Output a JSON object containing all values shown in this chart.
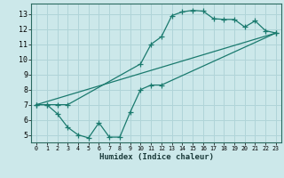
{
  "title": "",
  "xlabel": "Humidex (Indice chaleur)",
  "bg_color": "#cce8ea",
  "grid_color": "#b0d4d8",
  "line_color": "#1a7a6e",
  "xlim": [
    -0.5,
    23.5
  ],
  "ylim": [
    4.5,
    13.7
  ],
  "xticks": [
    0,
    1,
    2,
    3,
    4,
    5,
    6,
    7,
    8,
    9,
    10,
    11,
    12,
    13,
    14,
    15,
    16,
    17,
    18,
    19,
    20,
    21,
    22,
    23
  ],
  "yticks": [
    5,
    6,
    7,
    8,
    9,
    10,
    11,
    12,
    13
  ],
  "line1_x": [
    0,
    1,
    2,
    3,
    10,
    11,
    12,
    13,
    14,
    15,
    16,
    17,
    18,
    19,
    20,
    21,
    22,
    23
  ],
  "line1_y": [
    7.0,
    7.0,
    7.0,
    7.0,
    9.7,
    11.0,
    11.5,
    12.9,
    13.15,
    13.25,
    13.2,
    12.7,
    12.65,
    12.65,
    12.15,
    12.55,
    11.9,
    11.75
  ],
  "line2_x": [
    0,
    1,
    2,
    3,
    4,
    5,
    6,
    7,
    8,
    9,
    10,
    11,
    12,
    23
  ],
  "line2_y": [
    7.0,
    7.0,
    6.4,
    5.5,
    5.0,
    4.8,
    5.8,
    4.85,
    4.85,
    6.5,
    8.0,
    8.3,
    8.3,
    11.75
  ],
  "line3_x": [
    0,
    23
  ],
  "line3_y": [
    7.0,
    11.75
  ],
  "xlabel_fontsize": 6.5,
  "tick_fontsize_x": 4.8,
  "tick_fontsize_y": 6.0
}
